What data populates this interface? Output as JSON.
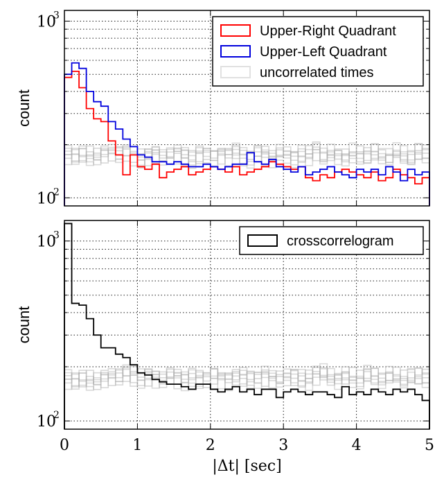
{
  "chart_data": [
    {
      "type": "line",
      "step": true,
      "scale_y": "log",
      "xlim": [
        0,
        5
      ],
      "ylim": [
        90,
        1150
      ],
      "ylabel": "count",
      "xlabel": "",
      "x_ticks": [
        "0",
        "1",
        "2",
        "3",
        "4",
        "5"
      ],
      "y_ticks": [
        {
          "v": 100,
          "label": "10",
          "exp": "2"
        },
        {
          "v": 1000,
          "label": "10",
          "exp": "3"
        }
      ],
      "grid": true,
      "legend_position": "top-right",
      "bin_width": 0.1,
      "series": [
        {
          "name": "Upper-Right Quadrant",
          "color": "#ff0000",
          "values": [
            480,
            520,
            420,
            320,
            280,
            270,
            210,
            175,
            135,
            175,
            150,
            145,
            155,
            130,
            140,
            145,
            150,
            135,
            140,
            145,
            150,
            145,
            140,
            150,
            135,
            140,
            145,
            150,
            160,
            155,
            150,
            145,
            150,
            130,
            125,
            135,
            130,
            140,
            145,
            140,
            135,
            130,
            140,
            125,
            130,
            145,
            135,
            130,
            120,
            130
          ]
        },
        {
          "name": "Upper-Left Quadrant",
          "color": "#0000dd",
          "values": [
            500,
            580,
            540,
            400,
            350,
            330,
            270,
            245,
            215,
            195,
            175,
            170,
            160,
            160,
            155,
            160,
            155,
            150,
            150,
            155,
            150,
            145,
            150,
            155,
            155,
            180,
            160,
            155,
            165,
            150,
            145,
            140,
            150,
            135,
            140,
            145,
            150,
            140,
            135,
            130,
            145,
            140,
            145,
            135,
            150,
            140,
            125,
            145,
            135,
            140
          ]
        },
        {
          "name": "uncorrelated times",
          "color": "#aaaaaa",
          "values": [
            175,
            170,
            180,
            175,
            170,
            180,
            185,
            175,
            180,
            175,
            170,
            175,
            180,
            170,
            175,
            180,
            175,
            170,
            180,
            175,
            170,
            180,
            175,
            185,
            175,
            170,
            180,
            175,
            170,
            180,
            175,
            170,
            180,
            175,
            185,
            170,
            180,
            175,
            170,
            180,
            175,
            170,
            180,
            175,
            170,
            180,
            175,
            170,
            180,
            175
          ]
        }
      ]
    },
    {
      "type": "line",
      "step": true,
      "scale_y": "log",
      "xlim": [
        0,
        5
      ],
      "ylim": [
        90,
        1300
      ],
      "ylabel": "count",
      "xlabel": "|Δt|  [sec]",
      "x_ticks": [
        "0",
        "1",
        "2",
        "3",
        "4",
        "5"
      ],
      "y_ticks": [
        {
          "v": 100,
          "label": "10",
          "exp": "2"
        },
        {
          "v": 1000,
          "label": "10",
          "exp": "3"
        }
      ],
      "grid": true,
      "legend_position": "top-right",
      "bin_width": 0.1,
      "series": [
        {
          "name": "crosscorrelogram",
          "color": "#000000",
          "values": [
            1250,
            450,
            440,
            370,
            300,
            255,
            255,
            235,
            225,
            205,
            185,
            180,
            170,
            165,
            160,
            160,
            155,
            150,
            160,
            160,
            150,
            145,
            150,
            155,
            145,
            150,
            140,
            150,
            150,
            135,
            145,
            150,
            145,
            140,
            145,
            145,
            140,
            135,
            155,
            140,
            145,
            140,
            150,
            145,
            140,
            150,
            145,
            150,
            140,
            130
          ]
        },
        {
          "name": "uncorrelated times",
          "color": "#aaaaaa",
          "values": [
            170,
            165,
            175,
            170,
            165,
            175,
            180,
            175,
            185,
            180,
            175,
            180,
            175,
            170,
            180,
            175,
            170,
            180,
            175,
            170,
            180,
            175,
            170,
            175,
            180,
            175,
            170,
            180,
            175,
            170,
            175,
            180,
            175,
            170,
            180,
            185,
            175,
            170,
            180,
            175,
            170,
            180,
            175,
            170,
            180,
            175,
            170,
            180,
            175,
            170
          ]
        }
      ]
    }
  ]
}
